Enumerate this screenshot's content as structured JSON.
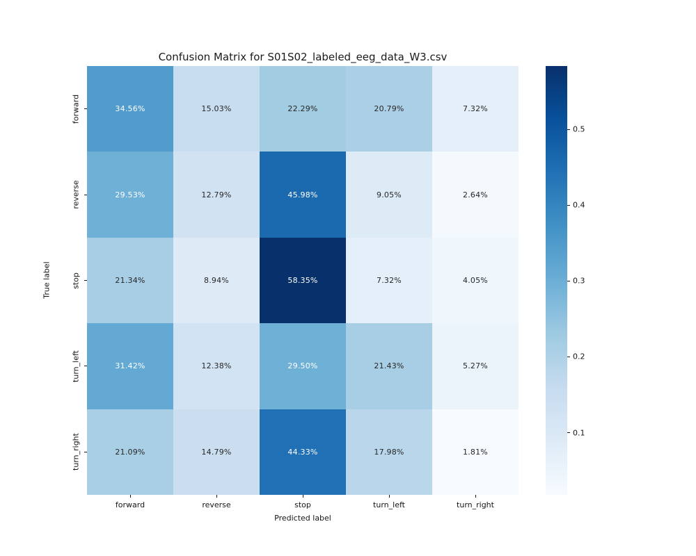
{
  "title": "Confusion Matrix for S01S02_labeled_eeg_data_W3.csv",
  "chart_data": {
    "type": "heatmap",
    "title": "Confusion Matrix for S01S02_labeled_eeg_data_W3.csv",
    "xlabel": "Predicted label",
    "ylabel": "True label",
    "x_categories": [
      "forward",
      "reverse",
      "stop",
      "turn_left",
      "turn_right"
    ],
    "y_categories": [
      "forward",
      "reverse",
      "stop",
      "turn_left",
      "turn_right"
    ],
    "values_percent": [
      [
        34.56,
        15.03,
        22.29,
        20.79,
        7.32
      ],
      [
        29.53,
        12.79,
        45.98,
        9.05,
        2.64
      ],
      [
        21.34,
        8.94,
        58.35,
        7.32,
        4.05
      ],
      [
        31.42,
        12.38,
        29.5,
        21.43,
        5.27
      ],
      [
        21.09,
        14.79,
        44.33,
        17.98,
        1.81
      ]
    ],
    "annotation_suffix": "%",
    "annotation_decimals": 2,
    "colormap": "Blues",
    "vmin": 0.0181,
    "vmax": 0.5835,
    "colorbar_ticks": [
      0.1,
      0.2,
      0.3,
      0.4,
      0.5
    ],
    "colorbar_position": "right",
    "grid": false,
    "colors": {
      "annotation_dark": "#262626",
      "annotation_light": "#ffffff",
      "tick_color": "#151515",
      "background": "#ffffff",
      "colormap_min_hex": "#f7fbff",
      "colormap_max_hex": "#08306b"
    }
  }
}
